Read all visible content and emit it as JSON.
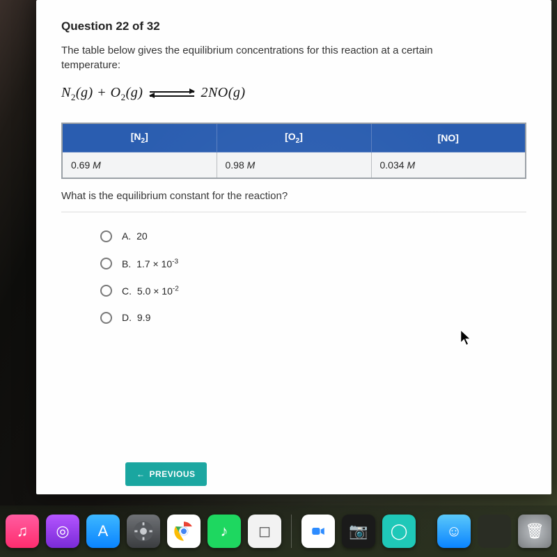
{
  "question": {
    "number_label": "Question 22 of 32",
    "prompt": "The table below gives the equilibrium concentrations for this reaction at a certain temperature:",
    "equation": {
      "lhs_html": "N<sub>2</sub>(g) + O<sub>2</sub>(g)",
      "rhs_html": "2NO(g)"
    },
    "followup": "What is the equilibrium constant for the reaction?"
  },
  "table": {
    "header_bg": "#2a5db0",
    "header_text_color": "#ffffff",
    "cell_bg": "#f3f4f5",
    "border_color": "#b8bcc0",
    "columns": [
      {
        "label_html": "[N<sub>2</sub>]"
      },
      {
        "label_html": "[O<sub>2</sub>]"
      },
      {
        "label_html": "[NO]"
      }
    ],
    "rows": [
      [
        {
          "value": "0.69",
          "unit": "M"
        },
        {
          "value": "0.98",
          "unit": "M"
        },
        {
          "value": "0.034",
          "unit": "M"
        }
      ]
    ]
  },
  "options": [
    {
      "letter": "A.",
      "label_html": "20"
    },
    {
      "letter": "B.",
      "label_html": "1.7 × 10<sup>-3</sup>"
    },
    {
      "letter": "C.",
      "label_html": "5.0 × 10<sup>-2</sup>"
    },
    {
      "letter": "D.",
      "label_html": "9.9"
    }
  ],
  "nav": {
    "previous_label": "PREVIOUS"
  },
  "dock": {
    "icons_left": [
      {
        "name": "music-icon",
        "class": "di-music",
        "glyph": "♫"
      },
      {
        "name": "podcasts-icon",
        "class": "di-podcast",
        "glyph": "◎"
      },
      {
        "name": "appstore-icon",
        "class": "di-appstore",
        "glyph": "A"
      },
      {
        "name": "settings-icon",
        "class": "di-settings",
        "glyph": "svg-gear"
      },
      {
        "name": "chrome-icon",
        "class": "di-chrome",
        "glyph": "svg-chrome"
      },
      {
        "name": "spotify-icon",
        "class": "di-spotify",
        "glyph": "♪"
      },
      {
        "name": "roblox-icon",
        "class": "di-roblox",
        "glyph": "◻"
      }
    ],
    "icons_mid": [
      {
        "name": "zoom-icon",
        "class": "di-zoom",
        "glyph": "svg-zoom"
      },
      {
        "name": "photobooth-icon",
        "class": "di-photob",
        "glyph": "📷"
      },
      {
        "name": "shape-icon",
        "class": "di-shape",
        "glyph": "◯"
      }
    ],
    "icons_right": [
      {
        "name": "finder-icon",
        "class": "di-finder",
        "glyph": "☺"
      },
      {
        "name": "box-icon",
        "class": "di-blank",
        "glyph": ""
      },
      {
        "name": "trash-icon",
        "class": "di-trash",
        "glyph": "🗑"
      }
    ]
  },
  "colors": {
    "prev_button_bg": "#1aa6a0"
  }
}
